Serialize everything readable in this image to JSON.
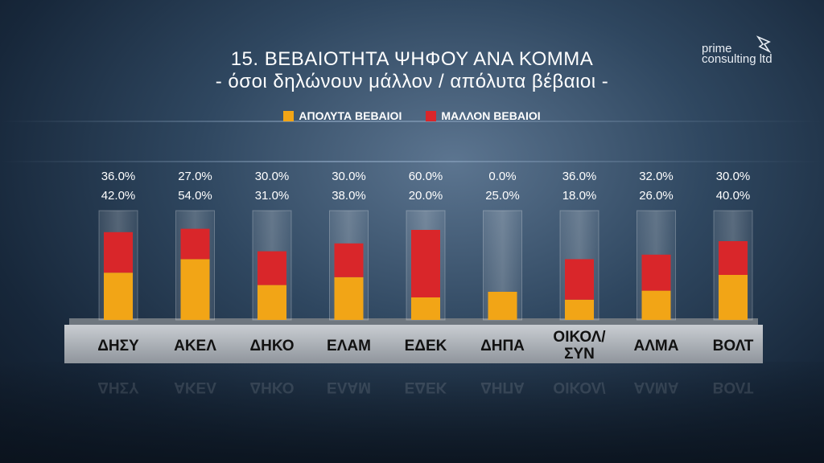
{
  "title": "15. ΒΕΒΑΙΟΤΗΤΑ ΨΗΦΟΥ ΑΝΑ ΚΟΜΜΑ",
  "subtitle": "- όσοι δηλώνουν μάλλον / απόλυτα βέβαιοι -",
  "logo": {
    "line1": "prime",
    "line2": "consulting ltd"
  },
  "colors": {
    "absolutely": "#f2a516",
    "rather": "#d9262a"
  },
  "chart_data": {
    "type": "bar",
    "stacked": true,
    "categories": [
      "ΔΗΣΥ",
      "ΑΚΕΛ",
      "ΔΗΚΟ",
      "ΕΛΑΜ",
      "ΕΔΕΚ",
      "ΔΗΠΑ",
      "ΟΙΚΟΛ/ ΣΥΝ",
      "ΑΛΜΑ",
      "ΒΟΛΤ"
    ],
    "series": [
      {
        "name": "ΑΠΟΛΥΤΑ ΒΕΒΑΙΟΙ",
        "values": [
          42,
          54,
          31,
          38,
          20,
          25,
          18,
          26,
          40
        ],
        "labels": [
          "42.0%",
          "54.0%",
          "31.0%",
          "38.0%",
          "20.0%",
          "25.0%",
          "18.0%",
          "26.0%",
          "40.0%"
        ]
      },
      {
        "name": "ΜΑΛΛΟΝ ΒΕΒΑΙΟΙ",
        "values": [
          36,
          27,
          30,
          30,
          60,
          0,
          36,
          32,
          30
        ],
        "labels": [
          "36.0%",
          "27.0%",
          "30.0%",
          "30.0%",
          "60.0%",
          "0.0%",
          "36.0%",
          "32.0%",
          "30.0%"
        ]
      }
    ],
    "ylim": [
      0,
      100
    ],
    "legend": "top-center"
  }
}
